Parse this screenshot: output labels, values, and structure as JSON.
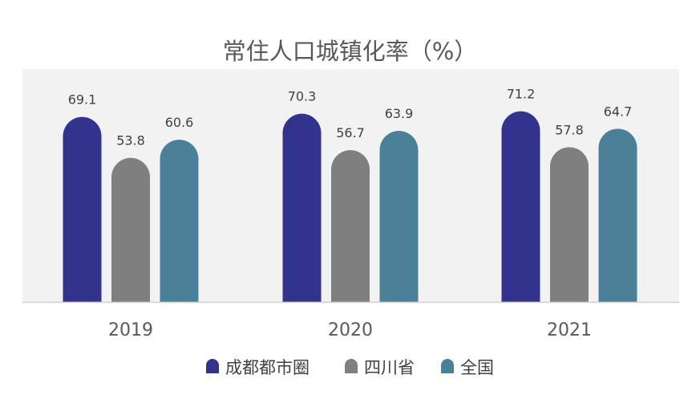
{
  "chart_data": {
    "type": "bar",
    "title": "常住人口城镇化率（%）",
    "categories": [
      "2019",
      "2020",
      "2021"
    ],
    "series": [
      {
        "name": "成都都市圈",
        "values": [
          69.1,
          70.3,
          71.2
        ],
        "color": "#32338c"
      },
      {
        "name": "四川省",
        "values": [
          53.8,
          56.7,
          57.8
        ],
        "color": "#7f7f7f"
      },
      {
        "name": "全国",
        "values": [
          60.6,
          63.9,
          64.7
        ],
        "color": "#4a8199"
      }
    ],
    "xlabel": "",
    "ylabel": "",
    "ylim": [
      0,
      75
    ],
    "grid": false,
    "legend": "bottom",
    "plot_background": "#f2f2f2"
  }
}
